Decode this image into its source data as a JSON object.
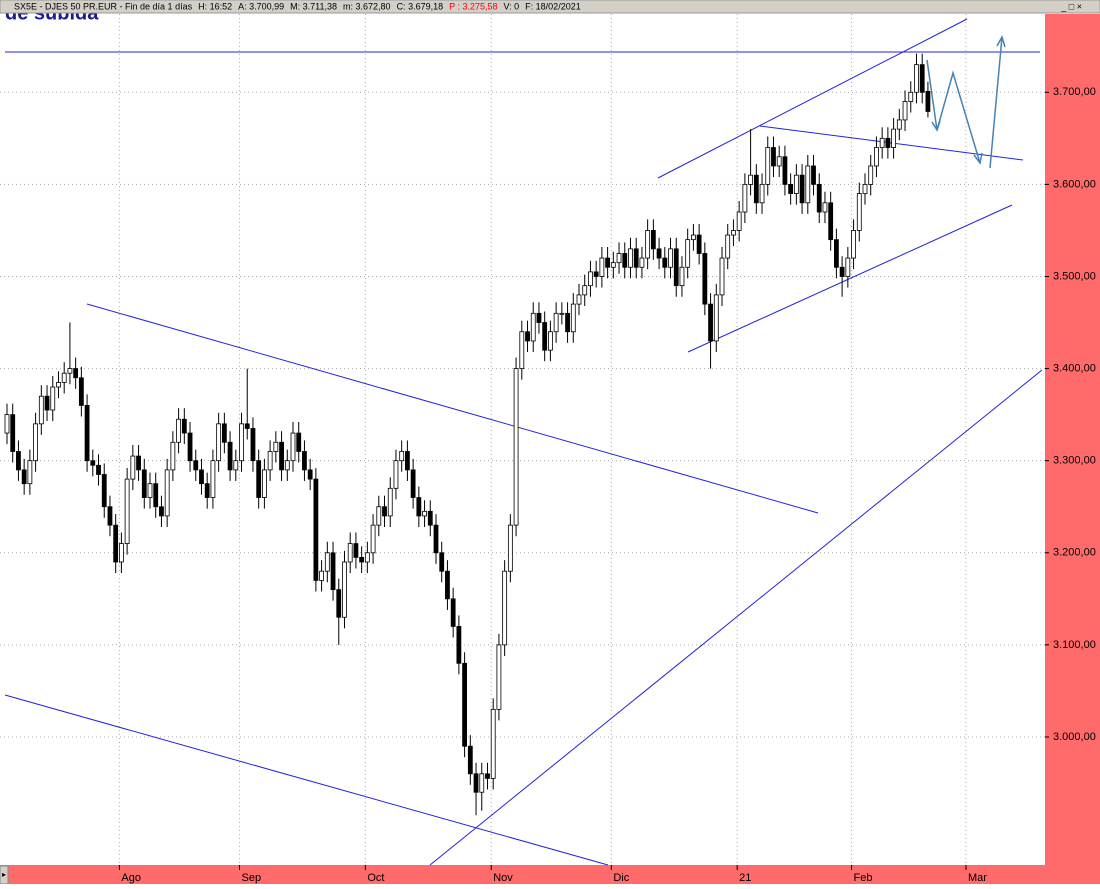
{
  "header": {
    "parts": [
      "SX5E - DJES 50 PR.EUR - Fin de día 1 días",
      "H: 16:52",
      "A: 3.700,99",
      "M: 3.711,38",
      "m: 3.672,80",
      "C: 3.679,18",
      "P : 3.275,58",
      "V: 0",
      "F: 18/02/2021"
    ]
  },
  "chart_data": {
    "type": "candlestick",
    "title": "de subida",
    "categories": [
      null,
      null,
      null,
      null,
      null,
      null,
      null,
      null,
      null,
      null,
      null,
      null,
      null,
      null,
      null,
      null,
      null,
      null,
      null,
      null,
      "Ago",
      null,
      null,
      null,
      null,
      null,
      null,
      null,
      null,
      null,
      null,
      null,
      null,
      null,
      null,
      null,
      null,
      null,
      null,
      null,
      null,
      "Sep",
      null,
      null,
      null,
      null,
      null,
      null,
      null,
      null,
      null,
      null,
      null,
      null,
      null,
      null,
      null,
      null,
      null,
      null,
      null,
      null,
      null,
      "Oct",
      null,
      null,
      null,
      null,
      null,
      null,
      null,
      null,
      null,
      null,
      null,
      null,
      null,
      null,
      null,
      null,
      null,
      null,
      null,
      null,
      null,
      "Nov",
      null,
      null,
      null,
      null,
      null,
      null,
      null,
      null,
      null,
      null,
      null,
      null,
      null,
      null,
      null,
      null,
      null,
      null,
      null,
      null,
      "Dic",
      null,
      null,
      null,
      null,
      null,
      null,
      null,
      null,
      null,
      null,
      null,
      null,
      null,
      null,
      null,
      null,
      null,
      null,
      null,
      null,
      null,
      "21",
      null,
      null,
      null,
      null,
      null,
      null,
      null,
      null,
      null,
      null,
      null,
      null,
      null,
      null,
      null,
      null,
      null,
      null,
      null,
      "Feb",
      null,
      null,
      null,
      null,
      null,
      null,
      null,
      null,
      null,
      null,
      null,
      null,
      null,
      null,
      null,
      null,
      null,
      null,
      null,
      "Mar"
    ],
    "open": [
      3330,
      3350,
      3310,
      3290,
      3275,
      3300,
      3340,
      3370,
      3355,
      3380,
      3385,
      3395,
      3400,
      3390,
      3360,
      3300,
      3295,
      3285,
      3250,
      3230,
      3190,
      3210,
      3280,
      3305,
      3290,
      3260,
      3275,
      3250,
      3240,
      3290,
      3320,
      3345,
      3330,
      3300,
      3290,
      3275,
      3260,
      3300,
      3340,
      3320,
      3290,
      3300,
      3340,
      3335,
      3300,
      3260,
      3290,
      3310,
      3320,
      3290,
      3300,
      3330,
      3310,
      3290,
      3280,
      3170,
      3180,
      3200,
      3160,
      3130,
      3190,
      3210,
      3195,
      3190,
      3200,
      3230,
      3250,
      3240,
      3270,
      3300,
      3310,
      3290,
      3260,
      3240,
      3245,
      3230,
      3200,
      3180,
      3150,
      3120,
      3080,
      2990,
      2960,
      2940,
      2960,
      2955,
      3030,
      3100,
      3180,
      3230,
      3400,
      3440,
      3430,
      3460,
      3450,
      3420,
      3440,
      3460,
      3460,
      3440,
      3470,
      3480,
      3490,
      3505,
      3500,
      3520,
      3510,
      3515,
      3525,
      3510,
      3530,
      3510,
      3520,
      3550,
      3530,
      3520,
      3510,
      3530,
      3490,
      3510,
      3540,
      3545,
      3525,
      3470,
      3430,
      3480,
      3520,
      3545,
      3550,
      3570,
      3600,
      3610,
      3580,
      3600,
      3640,
      3620,
      3630,
      3600,
      3590,
      3610,
      3580,
      3620,
      3600,
      3570,
      3580,
      3540,
      3510,
      3500,
      3520,
      3550,
      3590,
      3600,
      3620,
      3640,
      3650,
      3640,
      3660,
      3670,
      3690,
      3700,
      3730,
      3700.99,
      null,
      null,
      null,
      null,
      null,
      null,
      null
    ],
    "high": [
      3362,
      3362,
      3322,
      3302,
      3312,
      3352,
      3382,
      3382,
      3392,
      3397,
      3407,
      3450,
      3412,
      3402,
      3372,
      3312,
      3307,
      3297,
      3262,
      3242,
      3222,
      3292,
      3317,
      3317,
      3302,
      3287,
      3287,
      3262,
      3302,
      3332,
      3357,
      3357,
      3342,
      3312,
      3302,
      3287,
      3312,
      3352,
      3352,
      3332,
      3312,
      3352,
      3400,
      3347,
      3312,
      3302,
      3322,
      3332,
      3332,
      3312,
      3342,
      3342,
      3322,
      3302,
      3292,
      3192,
      3212,
      3212,
      3172,
      3202,
      3222,
      3222,
      3207,
      3212,
      3242,
      3262,
      3262,
      3282,
      3312,
      3322,
      3322,
      3302,
      3272,
      3257,
      3257,
      3242,
      3212,
      3192,
      3162,
      3132,
      3092,
      3002,
      2972,
      2972,
      2972,
      3042,
      3112,
      3192,
      3242,
      3412,
      3452,
      3452,
      3472,
      3472,
      3462,
      3452,
      3472,
      3472,
      3472,
      3482,
      3492,
      3502,
      3517,
      3517,
      3532,
      3532,
      3527,
      3537,
      3537,
      3542,
      3542,
      3532,
      3562,
      3562,
      3542,
      3532,
      3542,
      3542,
      3522,
      3552,
      3557,
      3557,
      3537,
      3482,
      3492,
      3532,
      3557,
      3562,
      3582,
      3612,
      3660,
      3622,
      3612,
      3652,
      3652,
      3642,
      3642,
      3612,
      3622,
      3622,
      3632,
      3632,
      3612,
      3592,
      3592,
      3552,
      3522,
      3532,
      3562,
      3602,
      3612,
      3632,
      3652,
      3662,
      3662,
      3672,
      3682,
      3702,
      3712,
      3742,
      3742,
      3711.38,
      null,
      null,
      null,
      null,
      null,
      null,
      null
    ],
    "low": [
      3318,
      3298,
      3278,
      3263,
      3263,
      3288,
      3328,
      3343,
      3343,
      3368,
      3373,
      3383,
      3378,
      3348,
      3288,
      3283,
      3273,
      3238,
      3218,
      3178,
      3178,
      3198,
      3268,
      3278,
      3248,
      3248,
      3238,
      3228,
      3228,
      3278,
      3308,
      3318,
      3288,
      3278,
      3263,
      3248,
      3248,
      3288,
      3308,
      3278,
      3278,
      3288,
      3323,
      3288,
      3248,
      3248,
      3278,
      3298,
      3278,
      3278,
      3288,
      3298,
      3278,
      3268,
      3158,
      3158,
      3168,
      3148,
      3100,
      3118,
      3178,
      3183,
      3178,
      3178,
      3188,
      3218,
      3228,
      3228,
      3258,
      3288,
      3278,
      3248,
      3228,
      3228,
      3218,
      3188,
      3168,
      3138,
      3108,
      3068,
      2978,
      2948,
      2915,
      2920,
      2943,
      2943,
      3018,
      3088,
      3168,
      3218,
      3388,
      3418,
      3418,
      3438,
      3408,
      3408,
      3428,
      3448,
      3428,
      3428,
      3458,
      3468,
      3478,
      3488,
      3488,
      3498,
      3498,
      3503,
      3498,
      3498,
      3498,
      3498,
      3508,
      3518,
      3508,
      3498,
      3498,
      3478,
      3478,
      3498,
      3528,
      3513,
      3458,
      3400,
      3418,
      3468,
      3508,
      3533,
      3538,
      3558,
      3588,
      3568,
      3568,
      3588,
      3608,
      3608,
      3588,
      3578,
      3578,
      3568,
      3568,
      3588,
      3558,
      3558,
      3528,
      3498,
      3478,
      3488,
      3508,
      3538,
      3578,
      3588,
      3608,
      3628,
      3628,
      3628,
      3648,
      3658,
      3678,
      3688,
      3688,
      3672.8,
      null,
      null,
      null,
      null,
      null,
      null,
      null
    ],
    "close": [
      3350,
      3310,
      3290,
      3275,
      3300,
      3340,
      3370,
      3355,
      3380,
      3385,
      3395,
      3400,
      3390,
      3360,
      3300,
      3295,
      3285,
      3250,
      3230,
      3190,
      3210,
      3280,
      3305,
      3290,
      3260,
      3275,
      3250,
      3240,
      3290,
      3320,
      3345,
      3330,
      3300,
      3290,
      3275,
      3260,
      3300,
      3340,
      3320,
      3290,
      3300,
      3340,
      3335,
      3300,
      3260,
      3290,
      3310,
      3320,
      3290,
      3300,
      3330,
      3310,
      3290,
      3280,
      3170,
      3180,
      3200,
      3160,
      3130,
      3190,
      3210,
      3195,
      3190,
      3200,
      3230,
      3250,
      3240,
      3270,
      3300,
      3310,
      3290,
      3260,
      3240,
      3245,
      3230,
      3200,
      3180,
      3150,
      3120,
      3080,
      2990,
      2960,
      2940,
      2960,
      2955,
      3030,
      3100,
      3180,
      3230,
      3400,
      3440,
      3430,
      3460,
      3450,
      3420,
      3440,
      3460,
      3460,
      3440,
      3470,
      3480,
      3490,
      3505,
      3500,
      3520,
      3510,
      3515,
      3525,
      3510,
      3530,
      3510,
      3520,
      3550,
      3530,
      3520,
      3510,
      3530,
      3490,
      3510,
      3540,
      3545,
      3525,
      3470,
      3430,
      3480,
      3520,
      3545,
      3550,
      3570,
      3600,
      3610,
      3580,
      3600,
      3640,
      3620,
      3630,
      3600,
      3590,
      3610,
      3580,
      3620,
      3600,
      3570,
      3580,
      3540,
      3510,
      3500,
      3520,
      3550,
      3590,
      3600,
      3620,
      3640,
      3650,
      3640,
      3660,
      3670,
      3690,
      3700,
      3730,
      3700,
      3679.18,
      null,
      null,
      null,
      null,
      null,
      null,
      null
    ],
    "ylim": [
      2861,
      3785
    ],
    "yticks": [
      {
        "value": 3000,
        "label": "3.000,00"
      },
      {
        "value": 3100,
        "label": "3.100,00"
      },
      {
        "value": 3200,
        "label": "3.200,00"
      },
      {
        "value": 3300,
        "label": "3.300,00"
      },
      {
        "value": 3400,
        "label": "3.400,00"
      },
      {
        "value": 3500,
        "label": "3.500,00"
      },
      {
        "value": 3600,
        "label": "3.600,00"
      },
      {
        "value": 3700,
        "label": "3.700,00"
      }
    ],
    "grid": true,
    "up_color": "#ffffff",
    "down_color": "#000000"
  }
}
